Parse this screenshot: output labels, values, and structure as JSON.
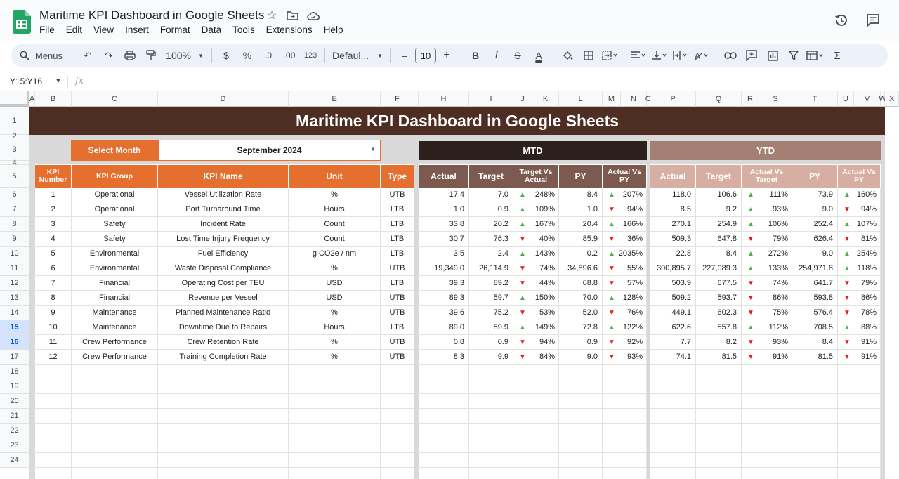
{
  "app": {
    "doc_title": "Maritime KPI Dashboard in Google Sheets",
    "menu": [
      "File",
      "Edit",
      "View",
      "Insert",
      "Format",
      "Data",
      "Tools",
      "Extensions",
      "Help"
    ]
  },
  "toolbar": {
    "menus_label": "Menus",
    "zoom": "100%",
    "currency": "$",
    "percent": "%",
    "dec_decrease": ".0",
    "dec_increase": ".00",
    "number_format": "123",
    "font": "Defaul...",
    "font_size": "10",
    "minus": "–",
    "plus": "+",
    "bold": "B",
    "italic": "I",
    "strike": "S",
    "text_color": "A",
    "sigma": "Σ"
  },
  "formula_bar": {
    "name_box": "Y15:Y16",
    "fx": "fx"
  },
  "columns": [
    "A",
    "B",
    "C",
    "D",
    "E",
    "F",
    "H",
    "I",
    "J",
    "K",
    "L",
    "M",
    "N",
    "O",
    "P",
    "Q",
    "R",
    "S",
    "T",
    "U",
    "V",
    "W",
    "X"
  ],
  "rows": [
    "1",
    "2",
    "3",
    "4",
    "5",
    "6",
    "7",
    "8",
    "9",
    "10",
    "11",
    "12",
    "13",
    "14",
    "15",
    "16",
    "17",
    "18",
    "19",
    "20",
    "21",
    "22",
    "23",
    "24"
  ],
  "dashboard": {
    "title": "Maritime KPI Dashboard in Google Sheets",
    "select_month_label": "Select Month",
    "select_month_value": "September 2024",
    "mtd_label": "MTD",
    "ytd_label": "YTD",
    "left_headers": [
      "KPI Number",
      "KPI Group",
      "KPI Name",
      "Unit",
      "Type"
    ],
    "mtd_headers": [
      "Actual",
      "Target",
      "Target Vs Actual",
      "PY",
      "Actual Vs PY"
    ],
    "ytd_headers": [
      "Actual",
      "Target",
      "Actual Vs Target",
      "PY",
      "Actual Vs PY"
    ],
    "kpis": [
      {
        "num": "1",
        "group": "Operational",
        "name": "Vessel Utilization Rate",
        "unit": "%",
        "type": "UTB",
        "mtd_actual": "17.4",
        "mtd_target": "7.0",
        "mtd_tva_dir": "up",
        "mtd_tva": "248%",
        "mtd_py": "8.4",
        "mtd_avp_dir": "up",
        "mtd_avp": "207%",
        "ytd_actual": "118.0",
        "ytd_target": "106.6",
        "ytd_avt_dir": "up",
        "ytd_avt": "111%",
        "ytd_py": "73.9",
        "ytd_avp_dir": "up",
        "ytd_avp": "160%"
      },
      {
        "num": "2",
        "group": "Operational",
        "name": "Port Turnaround Time",
        "unit": "Hours",
        "type": "LTB",
        "mtd_actual": "1.0",
        "mtd_target": "0.9",
        "mtd_tva_dir": "up",
        "mtd_tva": "109%",
        "mtd_py": "1.0",
        "mtd_avp_dir": "down",
        "mtd_avp": "94%",
        "ytd_actual": "8.5",
        "ytd_target": "9.2",
        "ytd_avt_dir": "up",
        "ytd_avt": "93%",
        "ytd_py": "9.0",
        "ytd_avp_dir": "down",
        "ytd_avp": "94%"
      },
      {
        "num": "3",
        "group": "Safety",
        "name": "Incident Rate",
        "unit": "Count",
        "type": "LTB",
        "mtd_actual": "33.8",
        "mtd_target": "20.2",
        "mtd_tva_dir": "up",
        "mtd_tva": "167%",
        "mtd_py": "20.4",
        "mtd_avp_dir": "up",
        "mtd_avp": "166%",
        "ytd_actual": "270.1",
        "ytd_target": "254.9",
        "ytd_avt_dir": "up",
        "ytd_avt": "106%",
        "ytd_py": "252.4",
        "ytd_avp_dir": "up",
        "ytd_avp": "107%"
      },
      {
        "num": "4",
        "group": "Safety",
        "name": "Lost Time Injury Frequency",
        "unit": "Count",
        "type": "LTB",
        "mtd_actual": "30.7",
        "mtd_target": "76.3",
        "mtd_tva_dir": "down",
        "mtd_tva": "40%",
        "mtd_py": "85.9",
        "mtd_avp_dir": "down",
        "mtd_avp": "36%",
        "ytd_actual": "509.3",
        "ytd_target": "647.8",
        "ytd_avt_dir": "down",
        "ytd_avt": "79%",
        "ytd_py": "626.4",
        "ytd_avp_dir": "down",
        "ytd_avp": "81%"
      },
      {
        "num": "5",
        "group": "Environmental",
        "name": "Fuel Efficiency",
        "unit": "g CO2e / nm",
        "type": "LTB",
        "mtd_actual": "3.5",
        "mtd_target": "2.4",
        "mtd_tva_dir": "up",
        "mtd_tva": "143%",
        "mtd_py": "0.2",
        "mtd_avp_dir": "up",
        "mtd_avp": "2035%",
        "ytd_actual": "22.8",
        "ytd_target": "8.4",
        "ytd_avt_dir": "up",
        "ytd_avt": "272%",
        "ytd_py": "9.0",
        "ytd_avp_dir": "up",
        "ytd_avp": "254%"
      },
      {
        "num": "6",
        "group": "Environmental",
        "name": "Waste Disposal Compliance",
        "unit": "%",
        "type": "UTB",
        "mtd_actual": "19,349.0",
        "mtd_target": "26,114.9",
        "mtd_tva_dir": "down",
        "mtd_tva": "74%",
        "mtd_py": "34,896.6",
        "mtd_avp_dir": "down",
        "mtd_avp": "55%",
        "ytd_actual": "300,895.7",
        "ytd_target": "227,089.3",
        "ytd_avt_dir": "up",
        "ytd_avt": "133%",
        "ytd_py": "254,971.8",
        "ytd_avp_dir": "up",
        "ytd_avp": "118%"
      },
      {
        "num": "7",
        "group": "Financial",
        "name": "Operating Cost per TEU",
        "unit": "USD",
        "type": "LTB",
        "mtd_actual": "39.3",
        "mtd_target": "89.2",
        "mtd_tva_dir": "down",
        "mtd_tva": "44%",
        "mtd_py": "68.8",
        "mtd_avp_dir": "down",
        "mtd_avp": "57%",
        "ytd_actual": "503.9",
        "ytd_target": "677.5",
        "ytd_avt_dir": "down",
        "ytd_avt": "74%",
        "ytd_py": "641.7",
        "ytd_avp_dir": "down",
        "ytd_avp": "79%"
      },
      {
        "num": "8",
        "group": "Financial",
        "name": "Revenue per Vessel",
        "unit": "USD",
        "type": "UTB",
        "mtd_actual": "89.3",
        "mtd_target": "59.7",
        "mtd_tva_dir": "up",
        "mtd_tva": "150%",
        "mtd_py": "70.0",
        "mtd_avp_dir": "up",
        "mtd_avp": "128%",
        "ytd_actual": "509.2",
        "ytd_target": "593.7",
        "ytd_avt_dir": "down",
        "ytd_avt": "86%",
        "ytd_py": "593.8",
        "ytd_avp_dir": "down",
        "ytd_avp": "86%"
      },
      {
        "num": "9",
        "group": "Maintenance",
        "name": "Planned Maintenance Ratio",
        "unit": "%",
        "type": "UTB",
        "mtd_actual": "39.6",
        "mtd_target": "75.2",
        "mtd_tva_dir": "down",
        "mtd_tva": "53%",
        "mtd_py": "52.0",
        "mtd_avp_dir": "down",
        "mtd_avp": "76%",
        "ytd_actual": "449.1",
        "ytd_target": "602.3",
        "ytd_avt_dir": "down",
        "ytd_avt": "75%",
        "ytd_py": "576.4",
        "ytd_avp_dir": "down",
        "ytd_avp": "78%"
      },
      {
        "num": "10",
        "group": "Maintenance",
        "name": "Downtime Due to Repairs",
        "unit": "Hours",
        "type": "LTB",
        "mtd_actual": "89.0",
        "mtd_target": "59.9",
        "mtd_tva_dir": "up",
        "mtd_tva": "149%",
        "mtd_py": "72.8",
        "mtd_avp_dir": "up",
        "mtd_avp": "122%",
        "ytd_actual": "622.6",
        "ytd_target": "557.8",
        "ytd_avt_dir": "up",
        "ytd_avt": "112%",
        "ytd_py": "708.5",
        "ytd_avp_dir": "up",
        "ytd_avp": "88%"
      },
      {
        "num": "11",
        "group": "Crew Performance",
        "name": "Crew Retention Rate",
        "unit": "%",
        "type": "UTB",
        "mtd_actual": "0.8",
        "mtd_target": "0.9",
        "mtd_tva_dir": "down",
        "mtd_tva": "94%",
        "mtd_py": "0.9",
        "mtd_avp_dir": "down",
        "mtd_avp": "92%",
        "ytd_actual": "7.7",
        "ytd_target": "8.2",
        "ytd_avt_dir": "down",
        "ytd_avt": "93%",
        "ytd_py": "8.4",
        "ytd_avp_dir": "down",
        "ytd_avp": "91%"
      },
      {
        "num": "12",
        "group": "Crew Performance",
        "name": "Training Completion Rate",
        "unit": "%",
        "type": "UTB",
        "mtd_actual": "8.3",
        "mtd_target": "9.9",
        "mtd_tva_dir": "down",
        "mtd_tva": "84%",
        "mtd_py": "9.0",
        "mtd_avp_dir": "down",
        "mtd_avp": "93%",
        "ytd_actual": "74.1",
        "ytd_target": "81.5",
        "ytd_avt_dir": "down",
        "ytd_avt": "91%",
        "ytd_py": "81.5",
        "ytd_avp_dir": "down",
        "ytd_avp": "91%"
      }
    ]
  },
  "colors": {
    "banner": "#4e2e23",
    "orange": "#e46f2e",
    "mtd_header": "#2c201d",
    "mtd_subheader": "#7d5a4f",
    "ytd_header": "#a47f74",
    "ytd_subheader": "#d6afa2",
    "up_arrow": "#4caf50",
    "down_arrow": "#e02020"
  }
}
